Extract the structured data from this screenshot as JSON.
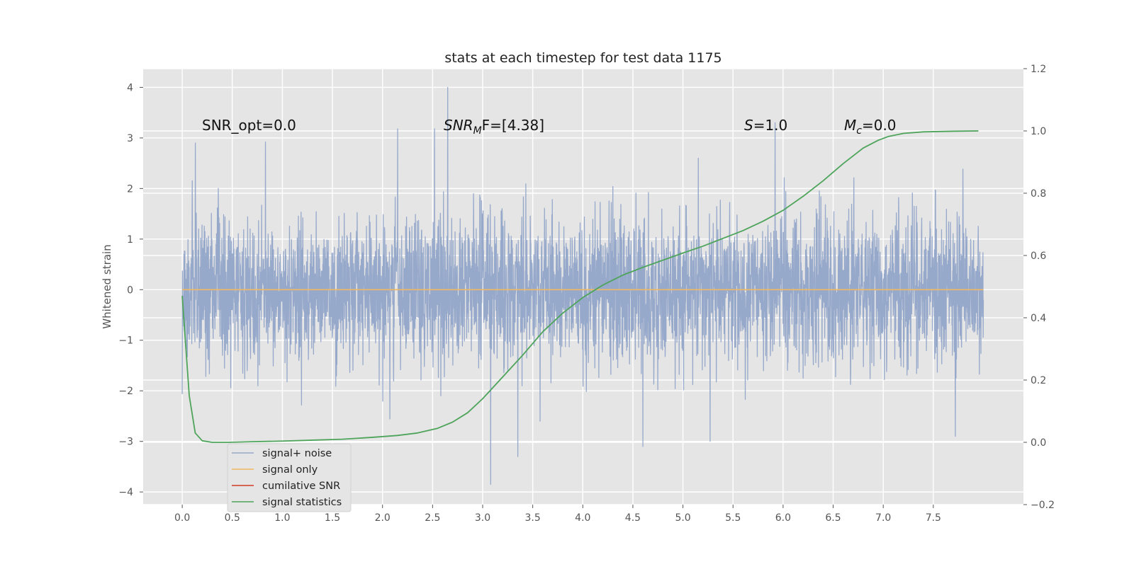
{
  "chart_data": {
    "type": "line",
    "title": "stats at each timestep for test data 1175",
    "xlabel": "",
    "ylabel": "Whitened strain",
    "xlim": [
      -0.39,
      8.4
    ],
    "ylim": [
      -4.25,
      4.37
    ],
    "y2lim": [
      -0.2,
      1.2
    ],
    "x_ticks": [
      "0.0",
      "0.5",
      "1.0",
      "1.5",
      "2.0",
      "2.5",
      "3.0",
      "3.5",
      "4.0",
      "4.5",
      "5.0",
      "5.5",
      "6.0",
      "6.5",
      "7.0",
      "7.5"
    ],
    "y_ticks": [
      "−4",
      "−3",
      "−2",
      "−1",
      "0",
      "1",
      "2",
      "3",
      "4"
    ],
    "y2_ticks": [
      "−0.2",
      "0.0",
      "0.2",
      "0.4",
      "0.6",
      "0.8",
      "1.0",
      "1.2"
    ],
    "grid": true,
    "legend_position": "lower-left",
    "annotations": {
      "snr_opt": "SNR_opt=0.0",
      "snr_mf_base": "SNR",
      "snr_mf_sub": "M",
      "snr_mf_rest": "F=[4.38]",
      "s_italic": "S",
      "s_rest": "=1.0",
      "mc_base": "M",
      "mc_sub": "c",
      "mc_rest": "=0.0"
    },
    "series": [
      {
        "name": "signal+ noise",
        "axis": "left",
        "color": "#97a9cb",
        "description_note": "dense whitened noise trace, approx. amplitude ±1.5 with spikes to ±3",
        "x_range": [
          0.0,
          8.0
        ],
        "peak_values": [
          {
            "x": 2.65,
            "y": 4.0
          },
          {
            "x": 3.08,
            "y": -3.85
          },
          {
            "x": 3.35,
            "y": -3.3
          },
          {
            "x": 5.92,
            "y": 3.3
          },
          {
            "x": 2.15,
            "y": 3.18
          },
          {
            "x": 2.52,
            "y": 3.18
          },
          {
            "x": 4.6,
            "y": -3.1
          },
          {
            "x": 5.27,
            "y": -3.0
          },
          {
            "x": 0.83,
            "y": 2.92
          },
          {
            "x": 0.13,
            "y": 2.9
          },
          {
            "x": 7.72,
            "y": -2.9
          }
        ]
      },
      {
        "name": "signal only",
        "axis": "left",
        "color": "#f0b860",
        "x": [
          0.0,
          8.0
        ],
        "y": [
          0.0,
          0.0
        ]
      },
      {
        "name": "cumilative SNR",
        "axis": "right",
        "color": "#d43a2a",
        "x": [],
        "y": []
      },
      {
        "name": "signal statistics",
        "axis": "right",
        "color": "#4da45a",
        "x": [
          0.0,
          0.07,
          0.13,
          0.2,
          0.3,
          0.45,
          0.7,
          1.0,
          1.3,
          1.6,
          1.9,
          2.15,
          2.35,
          2.55,
          2.7,
          2.85,
          3.0,
          3.2,
          3.4,
          3.6,
          3.8,
          4.0,
          4.2,
          4.4,
          4.6,
          4.8,
          5.0,
          5.2,
          5.4,
          5.6,
          5.8,
          6.0,
          6.2,
          6.4,
          6.6,
          6.8,
          6.95,
          7.05,
          7.2,
          7.4,
          7.7,
          7.95
        ],
        "y": [
          0.47,
          0.15,
          0.03,
          0.005,
          0.0,
          0.0,
          0.002,
          0.004,
          0.007,
          0.01,
          0.016,
          0.022,
          0.03,
          0.045,
          0.065,
          0.095,
          0.14,
          0.21,
          0.28,
          0.355,
          0.415,
          0.465,
          0.505,
          0.537,
          0.562,
          0.585,
          0.608,
          0.63,
          0.655,
          0.68,
          0.71,
          0.745,
          0.79,
          0.84,
          0.895,
          0.945,
          0.97,
          0.982,
          0.992,
          0.997,
          0.999,
          1.0
        ]
      }
    ]
  }
}
